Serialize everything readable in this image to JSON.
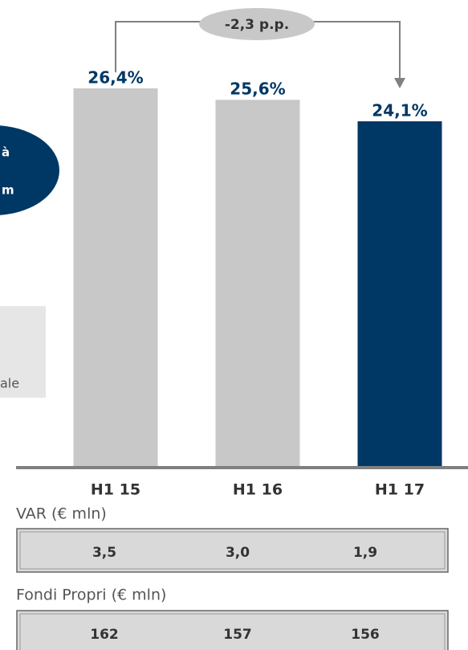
{
  "chart_data": {
    "type": "bar",
    "categories": [
      "H1 15",
      "H1 16",
      "H1 17"
    ],
    "values": [
      26.4,
      25.6,
      24.1
    ],
    "value_labels": [
      "26,4%",
      "25,6%",
      "24,1%"
    ],
    "colors": [
      "#c8c8c8",
      "#c8c8c8",
      "#003865"
    ],
    "annotation": "-2,3 p.p."
  },
  "side_fragments": [
    "à",
    "m",
    "ale"
  ],
  "tables": [
    {
      "label": "VAR (€ mln)",
      "values": [
        3.5,
        3.0,
        1.9
      ],
      "value_labels": [
        "3,5",
        "3,0",
        "1,9"
      ]
    },
    {
      "label": "Fondi Propri (€ mln)",
      "values": [
        162,
        157,
        156
      ],
      "value_labels": [
        "162",
        "157",
        "156"
      ]
    }
  ]
}
